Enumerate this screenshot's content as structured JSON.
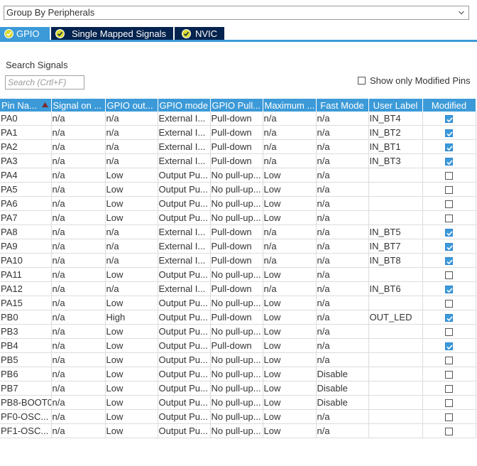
{
  "group_select": {
    "value": "Group By Peripherals"
  },
  "tabs": [
    {
      "label": "GPIO",
      "active": true
    },
    {
      "label": "Single Mapped Signals",
      "active": false
    },
    {
      "label": "NVIC",
      "active": false
    }
  ],
  "search": {
    "label": "Search Signals",
    "placeholder": "Search (Crtl+F)"
  },
  "show_modified_label": "Show only Modified Pins",
  "table": {
    "headers": [
      "Pin Na...",
      "Signal on ...",
      "GPIO out...",
      "GPIO mode",
      "GPIO Pull...",
      "Maximum ...",
      "Fast Mode",
      "User Label",
      "Modified"
    ],
    "rows": [
      [
        "PA0",
        "n/a",
        "n/a",
        "External I...",
        "Pull-down",
        "n/a",
        "n/a",
        "IN_BT4",
        true
      ],
      [
        "PA1",
        "n/a",
        "n/a",
        "External I...",
        "Pull-down",
        "n/a",
        "n/a",
        "IN_BT2",
        true
      ],
      [
        "PA2",
        "n/a",
        "n/a",
        "External I...",
        "Pull-down",
        "n/a",
        "n/a",
        "IN_BT1",
        true
      ],
      [
        "PA3",
        "n/a",
        "n/a",
        "External I...",
        "Pull-down",
        "n/a",
        "n/a",
        "IN_BT3",
        true
      ],
      [
        "PA4",
        "n/a",
        "Low",
        "Output Pu...",
        "No pull-up...",
        "Low",
        "n/a",
        "",
        false
      ],
      [
        "PA5",
        "n/a",
        "Low",
        "Output Pu...",
        "No pull-up...",
        "Low",
        "n/a",
        "",
        false
      ],
      [
        "PA6",
        "n/a",
        "Low",
        "Output Pu...",
        "No pull-up...",
        "Low",
        "n/a",
        "",
        false
      ],
      [
        "PA7",
        "n/a",
        "Low",
        "Output Pu...",
        "No pull-up...",
        "Low",
        "n/a",
        "",
        false
      ],
      [
        "PA8",
        "n/a",
        "n/a",
        "External I...",
        "Pull-down",
        "n/a",
        "n/a",
        "IN_BT5",
        true
      ],
      [
        "PA9",
        "n/a",
        "n/a",
        "External I...",
        "Pull-down",
        "n/a",
        "n/a",
        "IN_BT7",
        true
      ],
      [
        "PA10",
        "n/a",
        "n/a",
        "External I...",
        "Pull-down",
        "n/a",
        "n/a",
        "IN_BT8",
        true
      ],
      [
        "PA11",
        "n/a",
        "Low",
        "Output Pu...",
        "No pull-up...",
        "Low",
        "n/a",
        "",
        false
      ],
      [
        "PA12",
        "n/a",
        "n/a",
        "External I...",
        "Pull-down",
        "n/a",
        "n/a",
        "IN_BT6",
        true
      ],
      [
        "PA15",
        "n/a",
        "Low",
        "Output Pu...",
        "No pull-up...",
        "Low",
        "n/a",
        "",
        false
      ],
      [
        "PB0",
        "n/a",
        "High",
        "Output Pu...",
        "Pull-down",
        "Low",
        "n/a",
        "OUT_LED",
        true
      ],
      [
        "PB3",
        "n/a",
        "Low",
        "Output Pu...",
        "No pull-up...",
        "Low",
        "n/a",
        "",
        false
      ],
      [
        "PB4",
        "n/a",
        "Low",
        "Output Pu...",
        "Pull-down",
        "Low",
        "n/a",
        "",
        true
      ],
      [
        "PB5",
        "n/a",
        "Low",
        "Output Pu...",
        "No pull-up...",
        "Low",
        "n/a",
        "",
        false
      ],
      [
        "PB6",
        "n/a",
        "Low",
        "Output Pu...",
        "No pull-up...",
        "Low",
        "Disable",
        "",
        false
      ],
      [
        "PB7",
        "n/a",
        "Low",
        "Output Pu...",
        "No pull-up...",
        "Low",
        "Disable",
        "",
        false
      ],
      [
        "PB8-BOOT0",
        "n/a",
        "Low",
        "Output Pu...",
        "No pull-up...",
        "Low",
        "Disable",
        "",
        false
      ],
      [
        "PF0-OSC...",
        "n/a",
        "Low",
        "Output Pu...",
        "No pull-up...",
        "Low",
        "n/a",
        "",
        false
      ],
      [
        "PF1-OSC...",
        "n/a",
        "Low",
        "Output Pu...",
        "No pull-up...",
        "Low",
        "n/a",
        "",
        false
      ]
    ]
  },
  "colors": {
    "accent": "#3c9ad8",
    "tab_inactive": "#04234e",
    "tab_icon_fill": "#d7d933",
    "checkbox_checked": "#3c9ad8",
    "grid_line": "#dcdcdc"
  },
  "icons": {
    "dropdown": "chevron-down-icon",
    "tab": "check-circle-icon",
    "sort": "sort-ascending-icon"
  }
}
